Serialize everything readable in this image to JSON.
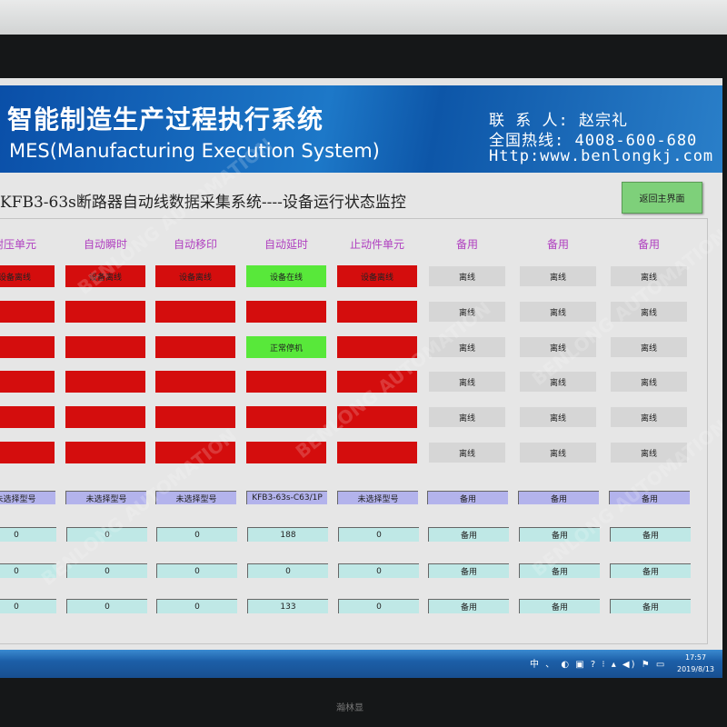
{
  "banner": {
    "title": "智能制造生产过程执行系统",
    "subtitle": "MES(Manufacturing Execution System)",
    "contact": "联 系 人: 赵宗礼",
    "hotline": "全国热线: 4008-600-680",
    "website": "Http:www.benlongkj.com"
  },
  "page": {
    "title": "KFB3-63s断路器自动线数据采集系统----设备运行状态监控",
    "return_button": "返回主界面"
  },
  "columns": [
    {
      "label": "耐压单元",
      "status": [
        {
          "text": "设备离线",
          "state": "red"
        },
        {
          "text": "",
          "state": "red"
        },
        {
          "text": "",
          "state": "red"
        },
        {
          "text": "",
          "state": "red"
        },
        {
          "text": "",
          "state": "red"
        },
        {
          "text": "",
          "state": "red"
        }
      ],
      "model": "未选择型号",
      "values": [
        "0",
        "0",
        "0"
      ]
    },
    {
      "label": "自动瞬时",
      "status": [
        {
          "text": "设备离线",
          "state": "red"
        },
        {
          "text": "",
          "state": "red"
        },
        {
          "text": "",
          "state": "red"
        },
        {
          "text": "",
          "state": "red"
        },
        {
          "text": "",
          "state": "red"
        },
        {
          "text": "",
          "state": "red"
        }
      ],
      "model": "未选择型号",
      "values": [
        "0",
        "0",
        "0"
      ]
    },
    {
      "label": "自动移印",
      "status": [
        {
          "text": "设备离线",
          "state": "red"
        },
        {
          "text": "",
          "state": "red"
        },
        {
          "text": "",
          "state": "red"
        },
        {
          "text": "",
          "state": "red"
        },
        {
          "text": "",
          "state": "red"
        },
        {
          "text": "",
          "state": "red"
        }
      ],
      "model": "未选择型号",
      "values": [
        "0",
        "0",
        "0"
      ]
    },
    {
      "label": "自动延时",
      "status": [
        {
          "text": "设备在线",
          "state": "green"
        },
        {
          "text": "",
          "state": "red"
        },
        {
          "text": "正常停机",
          "state": "green"
        },
        {
          "text": "",
          "state": "red"
        },
        {
          "text": "",
          "state": "red"
        },
        {
          "text": "",
          "state": "red"
        }
      ],
      "model": "KFB3-63s-C63/1P",
      "values": [
        "188",
        "0",
        "133"
      ]
    },
    {
      "label": "止动件单元",
      "status": [
        {
          "text": "设备离线",
          "state": "red"
        },
        {
          "text": "",
          "state": "red"
        },
        {
          "text": "",
          "state": "red"
        },
        {
          "text": "",
          "state": "red"
        },
        {
          "text": "",
          "state": "red"
        },
        {
          "text": "",
          "state": "red"
        }
      ],
      "model": "未选择型号",
      "values": [
        "0",
        "0",
        "0"
      ]
    },
    {
      "label": "备用",
      "status": [
        {
          "text": "离线",
          "state": "gray"
        },
        {
          "text": "离线",
          "state": "gray"
        },
        {
          "text": "离线",
          "state": "gray"
        },
        {
          "text": "离线",
          "state": "gray"
        },
        {
          "text": "离线",
          "state": "gray"
        },
        {
          "text": "离线",
          "state": "gray"
        }
      ],
      "model": "备用",
      "values": [
        "备用",
        "备用",
        "备用"
      ]
    },
    {
      "label": "备用",
      "status": [
        {
          "text": "离线",
          "state": "gray"
        },
        {
          "text": "离线",
          "state": "gray"
        },
        {
          "text": "离线",
          "state": "gray"
        },
        {
          "text": "离线",
          "state": "gray"
        },
        {
          "text": "离线",
          "state": "gray"
        },
        {
          "text": "离线",
          "state": "gray"
        }
      ],
      "model": "备用",
      "values": [
        "备用",
        "备用",
        "备用"
      ]
    },
    {
      "label": "备用",
      "status": [
        {
          "text": "离线",
          "state": "gray"
        },
        {
          "text": "离线",
          "state": "gray"
        },
        {
          "text": "离线",
          "state": "gray"
        },
        {
          "text": "离线",
          "state": "gray"
        },
        {
          "text": "离线",
          "state": "gray"
        },
        {
          "text": "离线",
          "state": "gray"
        }
      ],
      "model": "备用",
      "values": [
        "备用",
        "备用",
        "备用"
      ]
    }
  ],
  "taskbar": {
    "tray": "中 、 ◐ ▣ ? ⁝ ▴ ◀) ⚑ ▭",
    "time": "17:57",
    "date": "2019/8/13"
  },
  "watermark": "BENLONG AUTOMATION",
  "monitor_brand": "瀚林显",
  "colors": {
    "offline": "#d40d0d",
    "online": "#58e83a",
    "spare": "#d6d6d6",
    "model": "#b3b3ec",
    "value": "#bfe8e6",
    "label": "#b040c0"
  }
}
